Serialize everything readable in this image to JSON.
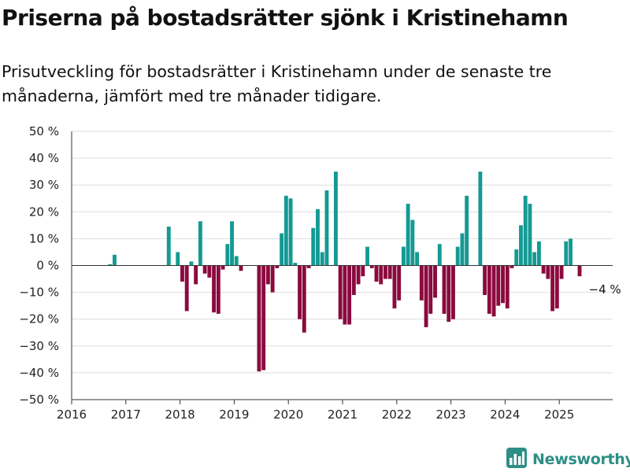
{
  "header": {
    "title": "Priserna på bostadsrätter sjönk i Kristinehamn",
    "subtitle": "Prisutveckling för bostadsrätter i Kristinehamn under de senaste tre månaderna, jämfört med tre månader tidigare."
  },
  "branding": {
    "logo_text": "Newsworthy",
    "logo_icon": "bar-chart-icon"
  },
  "colors": {
    "positive": "#139a93",
    "negative": "#8b0a3e",
    "grid": "#dddddd",
    "axis": "#333333"
  },
  "chart_data": {
    "type": "bar",
    "title": "",
    "xlabel": "",
    "ylabel": "",
    "ylim": [
      -50,
      50
    ],
    "y_ticks": [
      50,
      40,
      30,
      20,
      10,
      0,
      -10,
      -20,
      -30,
      -40,
      -50
    ],
    "y_tick_labels": [
      "50 %",
      "40 %",
      "30 %",
      "20 %",
      "10 %",
      "0 %",
      "−10 %",
      "−20 %",
      "−30 %",
      "−40 %",
      "−50 %"
    ],
    "x_ticks": [
      "2016",
      "2017",
      "2018",
      "2019",
      "2020",
      "2021",
      "2022",
      "2023",
      "2024",
      "2025"
    ],
    "x_range": [
      "2016-01",
      "2025-12"
    ],
    "grid": true,
    "annotation": {
      "label": "−4 %",
      "month": "2025-06",
      "value": -4
    },
    "series": [
      {
        "values": [
          [
            "2016-09",
            0.5
          ],
          [
            "2016-10",
            4
          ],
          [
            "2017-10",
            14.5
          ],
          [
            "2017-12",
            5
          ],
          [
            "2018-01",
            -6
          ],
          [
            "2018-02",
            -17
          ],
          [
            "2018-03",
            1.5
          ],
          [
            "2018-04",
            -7
          ],
          [
            "2018-05",
            16.5
          ],
          [
            "2018-06",
            -3
          ],
          [
            "2018-07",
            -4.5
          ],
          [
            "2018-08",
            -17.5
          ],
          [
            "2018-09",
            -18
          ],
          [
            "2018-10",
            -1.5
          ],
          [
            "2018-11",
            8
          ],
          [
            "2018-12",
            16.5
          ],
          [
            "2019-01",
            3.5
          ],
          [
            "2019-02",
            -2
          ],
          [
            "2019-06",
            -39.5
          ],
          [
            "2019-07",
            -39
          ],
          [
            "2019-08",
            -7
          ],
          [
            "2019-09",
            -10
          ],
          [
            "2019-10",
            -1
          ],
          [
            "2019-11",
            12
          ],
          [
            "2019-12",
            26
          ],
          [
            "2020-01",
            25
          ],
          [
            "2020-02",
            1
          ],
          [
            "2020-03",
            -20
          ],
          [
            "2020-04",
            -25
          ],
          [
            "2020-05",
            -1
          ],
          [
            "2020-06",
            14
          ],
          [
            "2020-07",
            21
          ],
          [
            "2020-08",
            5
          ],
          [
            "2020-09",
            28
          ],
          [
            "2020-11",
            35
          ],
          [
            "2020-12",
            -20
          ],
          [
            "2021-01",
            -22
          ],
          [
            "2021-02",
            -22
          ],
          [
            "2021-03",
            -11
          ],
          [
            "2021-04",
            -7
          ],
          [
            "2021-05",
            -4
          ],
          [
            "2021-06",
            7
          ],
          [
            "2021-07",
            -1
          ],
          [
            "2021-08",
            -6
          ],
          [
            "2021-09",
            -7
          ],
          [
            "2021-10",
            -5
          ],
          [
            "2021-11",
            -5
          ],
          [
            "2021-12",
            -16
          ],
          [
            "2022-01",
            -13
          ],
          [
            "2022-02",
            7
          ],
          [
            "2022-03",
            23
          ],
          [
            "2022-04",
            17
          ],
          [
            "2022-05",
            5
          ],
          [
            "2022-06",
            -13
          ],
          [
            "2022-07",
            -23
          ],
          [
            "2022-08",
            -18
          ],
          [
            "2022-09",
            -12
          ],
          [
            "2022-10",
            8
          ],
          [
            "2022-11",
            -18
          ],
          [
            "2022-12",
            -21
          ],
          [
            "2023-01",
            -20
          ],
          [
            "2023-02",
            7
          ],
          [
            "2023-03",
            12
          ],
          [
            "2023-04",
            26
          ],
          [
            "2023-07",
            35
          ],
          [
            "2023-08",
            -11
          ],
          [
            "2023-09",
            -18
          ],
          [
            "2023-10",
            -19
          ],
          [
            "2023-11",
            -15
          ],
          [
            "2023-12",
            -14
          ],
          [
            "2024-01",
            -16
          ],
          [
            "2024-02",
            -1
          ],
          [
            "2024-03",
            6
          ],
          [
            "2024-04",
            15
          ],
          [
            "2024-05",
            26
          ],
          [
            "2024-06",
            23
          ],
          [
            "2024-07",
            5
          ],
          [
            "2024-08",
            9
          ],
          [
            "2024-09",
            -3
          ],
          [
            "2024-10",
            -5
          ],
          [
            "2024-11",
            -17
          ],
          [
            "2024-12",
            -16
          ],
          [
            "2025-01",
            -5
          ],
          [
            "2025-02",
            9
          ],
          [
            "2025-03",
            10
          ],
          [
            "2025-05",
            -4
          ]
        ]
      }
    ]
  }
}
